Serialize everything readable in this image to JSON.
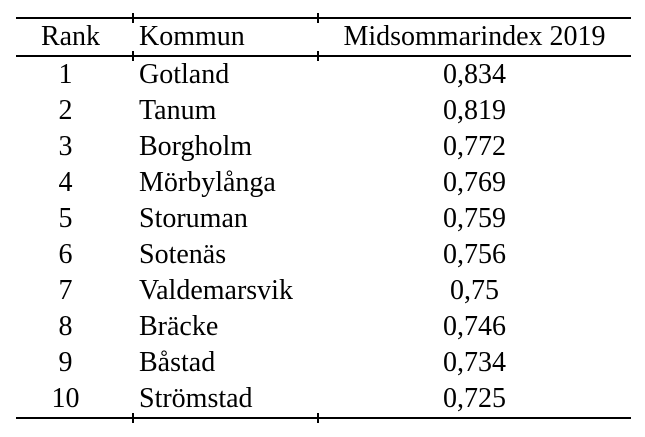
{
  "page": {
    "background_color": "#ffffff",
    "text_color": "#000000",
    "rule_color": "#000000"
  },
  "table": {
    "headers": {
      "rank": "Rank",
      "kommun": "Kommun",
      "index": "Midsommarindex 2019"
    },
    "rows": [
      {
        "rank": "1",
        "kommun": "Gotland",
        "index": "0,834"
      },
      {
        "rank": "2",
        "kommun": "Tanum",
        "index": "0,819"
      },
      {
        "rank": "3",
        "kommun": "Borgholm",
        "index": "0,772"
      },
      {
        "rank": "4",
        "kommun": "Mörbylånga",
        "index": "0,769"
      },
      {
        "rank": "5",
        "kommun": "Storuman",
        "index": "0,759"
      },
      {
        "rank": "6",
        "kommun": "Sotenäs",
        "index": "0,756"
      },
      {
        "rank": "7",
        "kommun": "Valdemarsvik",
        "index": "0,75"
      },
      {
        "rank": "8",
        "kommun": "Bräcke",
        "index": "0,746"
      },
      {
        "rank": "9",
        "kommun": "Båstad",
        "index": "0,734"
      },
      {
        "rank": "10",
        "kommun": "Strömstad",
        "index": "0,725"
      }
    ]
  },
  "chart_data": {
    "type": "table",
    "title": "Midsommarindex 2019",
    "columns": [
      "Rank",
      "Kommun",
      "Midsommarindex 2019"
    ],
    "rows": [
      [
        1,
        "Gotland",
        0.834
      ],
      [
        2,
        "Tanum",
        0.819
      ],
      [
        3,
        "Borgholm",
        0.772
      ],
      [
        4,
        "Mörbylånga",
        0.769
      ],
      [
        5,
        "Storuman",
        0.759
      ],
      [
        6,
        "Sotenäs",
        0.756
      ],
      [
        7,
        "Valdemarsvik",
        0.75
      ],
      [
        8,
        "Bräcke",
        0.746
      ],
      [
        9,
        "Båstad",
        0.734
      ],
      [
        10,
        "Strömstad",
        0.725
      ]
    ]
  }
}
